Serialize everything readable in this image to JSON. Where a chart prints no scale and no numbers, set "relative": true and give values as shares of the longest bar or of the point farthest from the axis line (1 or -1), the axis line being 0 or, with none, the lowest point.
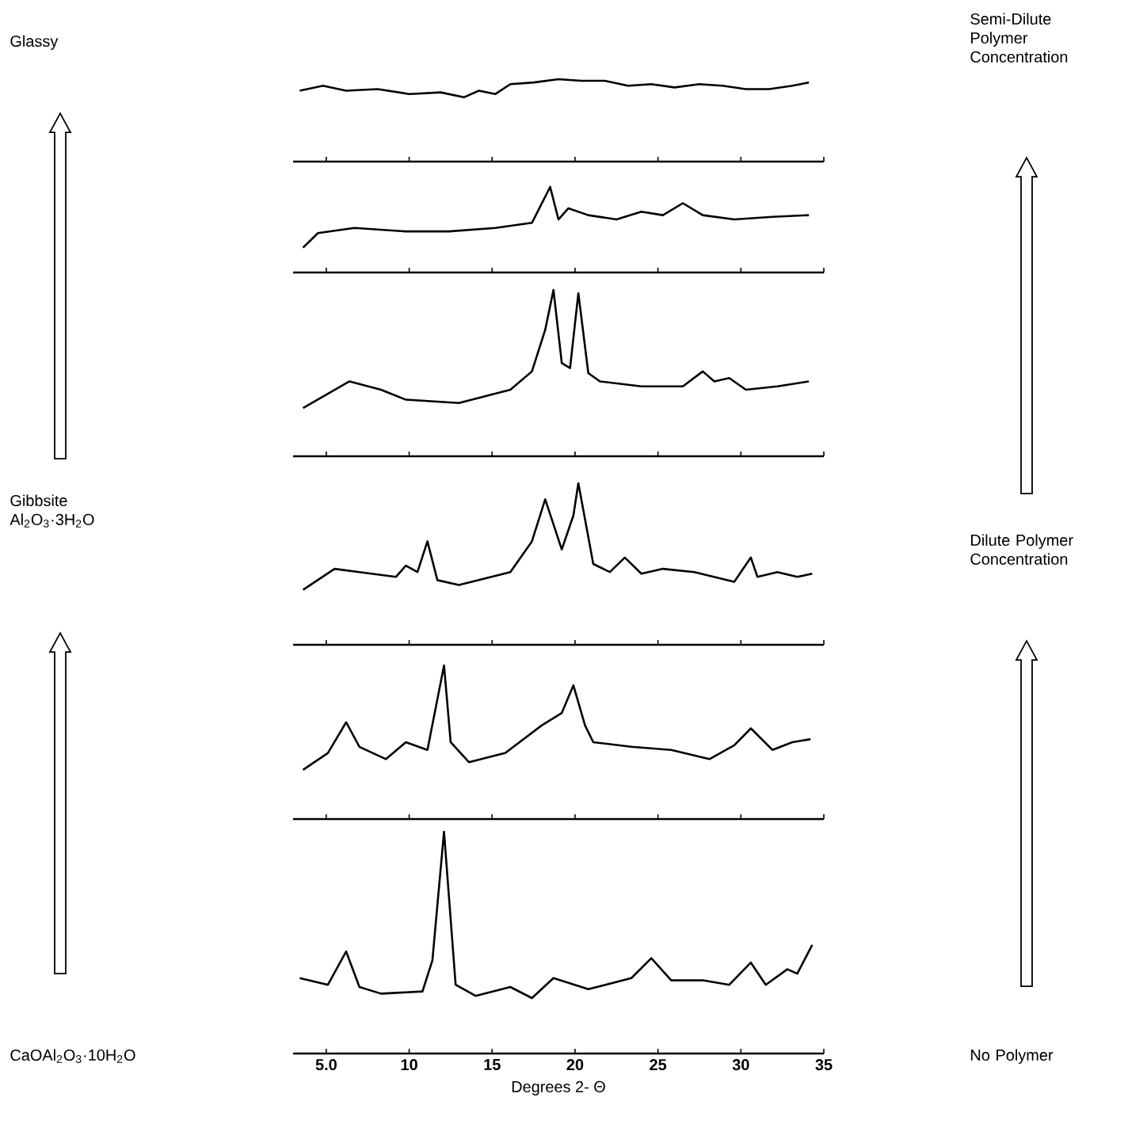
{
  "chart_data": [
    {
      "type": "line",
      "relative": true,
      "xlim": [
        3,
        35
      ],
      "xticks": [
        5,
        10,
        15,
        20,
        25,
        30,
        35
      ],
      "tick_labels": false,
      "annotations": [
        "Glassy",
        "Semi-Dilute Polymer Concentration"
      ],
      "series": [
        {
          "color": "#000000",
          "x": [
            3.4,
            4.8,
            6.2,
            8.1,
            10.0,
            11.9,
            13.3,
            14.2,
            15.2,
            16.1,
            17.5,
            19.0,
            20.4,
            21.8,
            23.2,
            24.6,
            26.0,
            27.5,
            28.9,
            30.3,
            31.7,
            33.1,
            34.1
          ],
          "values": [
            0.86,
            0.92,
            0.86,
            0.88,
            0.82,
            0.84,
            0.78,
            0.86,
            0.82,
            0.94,
            0.96,
            1,
            0.98,
            0.98,
            0.92,
            0.94,
            0.9,
            0.94,
            0.92,
            0.88,
            0.88,
            0.92,
            0.96
          ]
        }
      ]
    },
    {
      "type": "line",
      "relative": true,
      "xlim": [
        3,
        35
      ],
      "xticks": [
        5,
        10,
        15,
        20,
        25,
        30,
        35
      ],
      "tick_labels": false,
      "series": [
        {
          "color": "#000000",
          "x": [
            3.6,
            4.5,
            6.7,
            9.8,
            12.4,
            15.2,
            17.4,
            18.5,
            19.0,
            19.6,
            20.8,
            22.5,
            24.0,
            25.3,
            26.5,
            27.7,
            29.6,
            31.9,
            34.1
          ],
          "values": [
            0.29,
            0.46,
            0.52,
            0.48,
            0.48,
            0.52,
            0.58,
            1,
            0.62,
            0.75,
            0.67,
            0.62,
            0.71,
            0.67,
            0.81,
            0.67,
            0.62,
            0.65,
            0.67
          ]
        }
      ]
    },
    {
      "type": "line",
      "relative": true,
      "xlim": [
        3,
        35
      ],
      "xticks": [
        5,
        10,
        15,
        20,
        25,
        30,
        35
      ],
      "tick_labels": false,
      "series": [
        {
          "color": "#000000",
          "x": [
            3.6,
            6.4,
            8.3,
            9.8,
            13.0,
            16.1,
            17.4,
            18.2,
            18.7,
            19.2,
            19.7,
            20.2,
            20.8,
            21.5,
            24.0,
            26.5,
            27.7,
            28.4,
            29.3,
            30.3,
            32.2,
            34.1
          ],
          "values": [
            0.29,
            0.45,
            0.4,
            0.34,
            0.32,
            0.4,
            0.51,
            0.76,
            1,
            0.56,
            0.53,
            0.98,
            0.5,
            0.45,
            0.42,
            0.42,
            0.51,
            0.45,
            0.47,
            0.4,
            0.42,
            0.45
          ]
        }
      ]
    },
    {
      "type": "line",
      "relative": true,
      "xlim": [
        3,
        35
      ],
      "xticks": [
        5,
        10,
        15,
        20,
        25,
        30,
        35
      ],
      "tick_labels": false,
      "annotations": [
        "Gibbsite Al$_{2}$O$_{3}$·3H$_{2}$O",
        "Dilute Polymer Concentration"
      ],
      "series": [
        {
          "color": "#000000",
          "x": [
            3.6,
            5.5,
            7.0,
            9.2,
            9.8,
            10.5,
            11.1,
            11.7,
            13.0,
            16.1,
            17.4,
            18.2,
            19.2,
            19.9,
            20.2,
            21.1,
            22.1,
            23.0,
            24.0,
            25.3,
            27.2,
            29.6,
            30.6,
            31.0,
            32.2,
            33.4,
            34.3
          ],
          "values": [
            0.34,
            0.47,
            0.45,
            0.42,
            0.49,
            0.45,
            0.64,
            0.4,
            0.37,
            0.45,
            0.64,
            0.9,
            0.59,
            0.8,
            1,
            0.5,
            0.45,
            0.54,
            0.44,
            0.47,
            0.45,
            0.39,
            0.54,
            0.42,
            0.45,
            0.42,
            0.44
          ]
        }
      ]
    },
    {
      "type": "line",
      "relative": true,
      "xlim": [
        3,
        35
      ],
      "xticks": [
        5,
        10,
        15,
        20,
        25,
        30,
        35
      ],
      "tick_labels": false,
      "series": [
        {
          "color": "#000000",
          "x": [
            3.6,
            5.1,
            6.2,
            7.0,
            8.6,
            9.8,
            11.1,
            12.1,
            12.5,
            13.6,
            15.8,
            18.0,
            19.2,
            19.9,
            20.6,
            21.1,
            23.4,
            25.8,
            28.1,
            29.6,
            30.6,
            31.9,
            33.1,
            34.2
          ],
          "values": [
            0.32,
            0.43,
            0.63,
            0.47,
            0.39,
            0.5,
            0.45,
            1,
            0.5,
            0.37,
            0.43,
            0.61,
            0.69,
            0.87,
            0.61,
            0.5,
            0.47,
            0.45,
            0.39,
            0.48,
            0.59,
            0.45,
            0.5,
            0.52
          ]
        }
      ]
    },
    {
      "type": "line",
      "relative": true,
      "xlim": [
        3,
        35
      ],
      "xticks": [
        {
          "value": 5,
          "label": "5.0"
        },
        10,
        15,
        20,
        25,
        30,
        35
      ],
      "tick_labels": "x",
      "xlabel": "Degrees 2- Θ",
      "annotations": [
        "CaOAl$_{2}$O$_{3}$·10H$_{2}$O",
        "No Polymer"
      ],
      "series": [
        {
          "color": "#000000",
          "x": [
            3.4,
            5.1,
            6.2,
            7.0,
            8.3,
            10.8,
            11.4,
            12.1,
            12.8,
            14.0,
            16.1,
            17.4,
            18.7,
            20.8,
            23.4,
            24.6,
            25.8,
            27.7,
            29.3,
            30.6,
            31.5,
            32.8,
            33.4,
            34.3
          ],
          "values": [
            0.34,
            0.31,
            0.46,
            0.3,
            0.27,
            0.28,
            0.42,
            1,
            0.31,
            0.26,
            0.3,
            0.25,
            0.34,
            0.29,
            0.34,
            0.43,
            0.33,
            0.33,
            0.31,
            0.41,
            0.31,
            0.38,
            0.36,
            0.49
          ]
        }
      ]
    }
  ]
}
